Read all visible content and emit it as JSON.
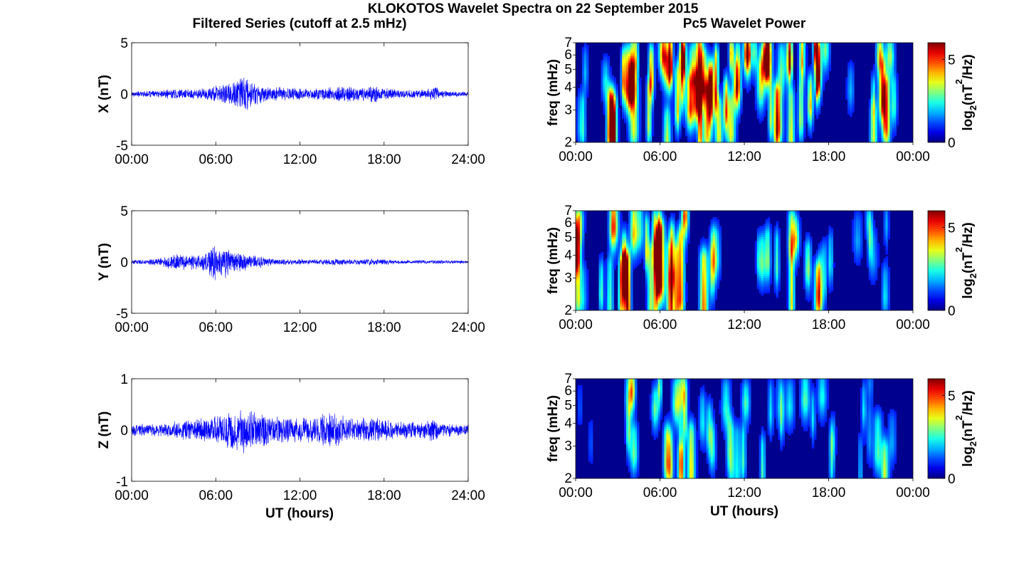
{
  "figure": {
    "title": "KLOKOTOS Wavelet Spectra on 22 September 2015",
    "left_column_title": "Filtered Series (cutoff at 2.5 mHz)",
    "right_column_title": "Pc5 Wavelet Power",
    "x_label": "UT (hours)",
    "freq_label": "freq (mHz)",
    "colorbar_label": "log",
    "colorbar_label_sub": "2",
    "colorbar_label_rest_a": "(nT",
    "colorbar_label_sup": "2",
    "colorbar_label_rest_b": "/Hz)"
  },
  "colors": {
    "trace": "#0000ff",
    "spectrum_background": "#00008f",
    "colormap": "jet"
  },
  "chart_data": [
    {
      "type": "line",
      "component": "X",
      "ylabel": "X (nT)",
      "ylim": [
        -5,
        5
      ],
      "yticks": [
        "5",
        "0",
        "-5"
      ],
      "xlim": [
        0,
        24
      ],
      "xticks": [
        "00:00",
        "06:00",
        "12:00",
        "18:00",
        "24:00"
      ],
      "amplitude_envelope": {
        "x": [
          0,
          2,
          3,
          4,
          5,
          6,
          7,
          7.5,
          8,
          8.5,
          9,
          10,
          11,
          12,
          13,
          14,
          15,
          15.5,
          16,
          17,
          17.5,
          18,
          19,
          20,
          21,
          21.7,
          22,
          23,
          24
        ],
        "y": [
          0.3,
          0.35,
          0.6,
          0.5,
          0.6,
          0.9,
          1.2,
          1.7,
          2.0,
          1.5,
          1.1,
          0.8,
          0.7,
          0.6,
          0.6,
          0.7,
          0.8,
          1.0,
          0.7,
          0.8,
          0.9,
          0.6,
          0.5,
          0.45,
          0.45,
          0.8,
          0.4,
          0.3,
          0.25
        ]
      }
    },
    {
      "type": "line",
      "component": "Y",
      "ylabel": "Y (nT)",
      "ylim": [
        -5,
        5
      ],
      "yticks": [
        "5",
        "0",
        "-5"
      ],
      "xlim": [
        0,
        24
      ],
      "xticks": [
        "00:00",
        "06:00",
        "12:00",
        "18:00",
        "24:00"
      ],
      "amplitude_envelope": {
        "x": [
          0,
          1,
          2,
          3,
          4,
          5,
          5.5,
          6,
          6.5,
          7,
          8,
          9,
          10,
          11,
          12,
          13,
          14,
          15,
          16,
          17,
          18,
          19,
          20,
          21,
          22,
          23,
          24
        ],
        "y": [
          0.2,
          0.25,
          0.4,
          0.9,
          0.8,
          1.0,
          1.6,
          2.0,
          1.8,
          1.4,
          1.0,
          0.7,
          0.4,
          0.3,
          0.3,
          0.25,
          0.3,
          0.35,
          0.3,
          0.35,
          0.3,
          0.2,
          0.2,
          0.2,
          0.2,
          0.15,
          0.15
        ]
      }
    },
    {
      "type": "line",
      "component": "Z",
      "ylabel": "Z (nT)",
      "ylim": [
        -1,
        1
      ],
      "yticks": [
        "1",
        "0",
        "-1"
      ],
      "xlim": [
        0,
        24
      ],
      "xticks": [
        "00:00",
        "06:00",
        "12:00",
        "18:00",
        "24:00"
      ],
      "amplitude_envelope": {
        "x": [
          0,
          2,
          3,
          4,
          5,
          6,
          7,
          7.5,
          8,
          9,
          10,
          11,
          12,
          13,
          14,
          14.5,
          15,
          16,
          17,
          17.5,
          18,
          19,
          20,
          21,
          21.7,
          22,
          23,
          24
        ],
        "y": [
          0.12,
          0.13,
          0.18,
          0.22,
          0.25,
          0.3,
          0.4,
          0.45,
          0.5,
          0.35,
          0.3,
          0.28,
          0.25,
          0.3,
          0.35,
          0.4,
          0.3,
          0.22,
          0.28,
          0.3,
          0.22,
          0.18,
          0.18,
          0.2,
          0.28,
          0.16,
          0.13,
          0.12
        ]
      }
    },
    {
      "type": "heatmap",
      "component": "X",
      "ylabel": "freq (mHz)",
      "ylim": [
        2,
        7
      ],
      "yscale": "log",
      "yticks": [
        "2",
        "3",
        "4",
        "5",
        "6",
        "7"
      ],
      "xlim": [
        0,
        24
      ],
      "xticks": [
        "00:00",
        "06:00",
        "12:00",
        "18:00",
        "00:00"
      ],
      "colorbar": {
        "range": [
          0,
          6
        ],
        "ticks": [
          "0",
          "5"
        ]
      },
      "activity_profile": {
        "hours": [
          0,
          1,
          2,
          3,
          4,
          5,
          6,
          7,
          8,
          9,
          10,
          11,
          12,
          13,
          14,
          15,
          16,
          17,
          18,
          19,
          20,
          21,
          22,
          23,
          24
        ],
        "level": [
          0.3,
          0.45,
          0.55,
          0.75,
          0.85,
          0.75,
          0.9,
          1.0,
          1.0,
          0.95,
          0.85,
          0.85,
          0.75,
          0.7,
          0.7,
          0.75,
          0.75,
          0.9,
          0.75,
          0.5,
          0.4,
          0.45,
          0.8,
          0.15,
          0.05
        ]
      }
    },
    {
      "type": "heatmap",
      "component": "Y",
      "ylabel": "freq (mHz)",
      "ylim": [
        2,
        7
      ],
      "yscale": "log",
      "yticks": [
        "2",
        "3",
        "4",
        "5",
        "6",
        "7"
      ],
      "xlim": [
        0,
        24
      ],
      "xticks": [
        "00:00",
        "06:00",
        "12:00",
        "18:00",
        "00:00"
      ],
      "colorbar": {
        "range": [
          0,
          6
        ],
        "ticks": [
          "0",
          "5"
        ]
      },
      "activity_profile": {
        "hours": [
          0,
          1,
          2,
          3,
          4,
          5,
          6,
          7,
          8,
          9,
          10,
          11,
          12,
          13,
          14,
          15,
          16,
          17,
          18,
          19,
          20,
          21,
          22,
          23,
          24
        ],
        "level": [
          0.45,
          0.5,
          0.55,
          0.75,
          0.9,
          0.6,
          0.95,
          1.0,
          0.95,
          0.75,
          0.5,
          0.55,
          0.5,
          0.45,
          0.5,
          0.7,
          0.5,
          0.55,
          0.45,
          0.4,
          0.3,
          0.35,
          0.3,
          0.1,
          0.05
        ]
      }
    },
    {
      "type": "heatmap",
      "component": "Z",
      "ylabel": "freq (mHz)",
      "ylim": [
        2,
        7
      ],
      "yscale": "log",
      "yticks": [
        "2",
        "3",
        "4",
        "5",
        "6",
        "7"
      ],
      "xlim": [
        0,
        24
      ],
      "xticks": [
        "00:00",
        "06:00",
        "12:00",
        "18:00",
        "00:00"
      ],
      "colorbar": {
        "range": [
          0,
          6
        ],
        "ticks": [
          "0",
          "5"
        ]
      },
      "activity_profile": {
        "hours": [
          0,
          1,
          2,
          3,
          4,
          5,
          6,
          7,
          8,
          9,
          10,
          11,
          12,
          13,
          14,
          15,
          16,
          17,
          18,
          19,
          20,
          21,
          22,
          23,
          24
        ],
        "level": [
          0.15,
          0.1,
          0.1,
          0.3,
          0.55,
          0.4,
          0.45,
          0.55,
          0.6,
          0.45,
          0.35,
          0.4,
          0.4,
          0.35,
          0.4,
          0.45,
          0.35,
          0.45,
          0.35,
          0.3,
          0.25,
          0.3,
          0.45,
          0.05,
          0.02
        ]
      }
    }
  ]
}
